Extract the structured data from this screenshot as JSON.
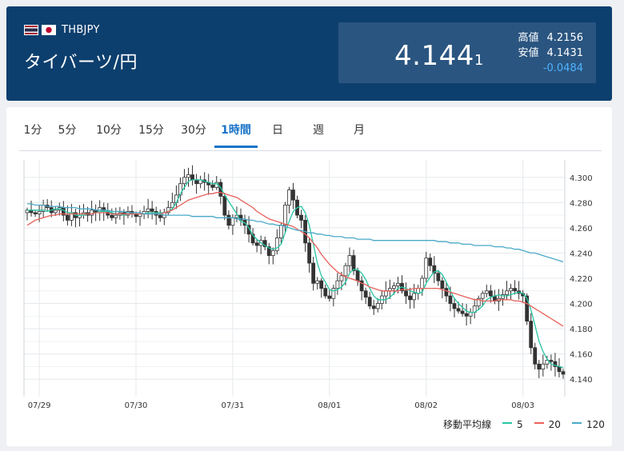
{
  "header": {
    "symbol": "THBJPY",
    "name": "タイバーツ/円",
    "price_main": "4.144",
    "price_tail": "1",
    "high_label": "高値",
    "high_value": "4.2156",
    "low_label": "安値",
    "low_value": "4.1431",
    "change": "-0.0484",
    "flag_1": "th-flag-icon",
    "flag_2": "jp-flag-icon"
  },
  "tabs": [
    {
      "label": "1分",
      "active": false
    },
    {
      "label": "5分",
      "active": false
    },
    {
      "label": "10分",
      "active": false
    },
    {
      "label": "15分",
      "active": false
    },
    {
      "label": "30分",
      "active": false
    },
    {
      "label": "1時間",
      "active": true
    },
    {
      "label": "日",
      "active": false
    },
    {
      "label": "週",
      "active": false
    },
    {
      "label": "月",
      "active": false
    }
  ],
  "legend": {
    "title": "移動平均線",
    "items": [
      {
        "label": "5",
        "color": "#26c6a4"
      },
      {
        "label": "20",
        "color": "#e8605a"
      },
      {
        "label": "120",
        "color": "#4aa9c8"
      }
    ]
  },
  "colors": {
    "up": "#ffffff",
    "down": "#333333",
    "grid": "#e5e8ec",
    "accent": "#1a73c8"
  },
  "chart_data": {
    "type": "candlestick",
    "title": "",
    "xlabel": "",
    "ylabel": "",
    "ylim": [
      4.13,
      4.31
    ],
    "yticks": [
      4.14,
      4.16,
      4.18,
      4.2,
      4.22,
      4.24,
      4.26,
      4.28,
      4.3
    ],
    "x_tick_labels": [
      {
        "label": "07/29",
        "index": 3
      },
      {
        "label": "07/30",
        "index": 27
      },
      {
        "label": "07/31",
        "index": 51
      },
      {
        "label": "08/01",
        "index": 75
      },
      {
        "label": "08/02",
        "index": 99
      },
      {
        "label": "08/03",
        "index": 123
      }
    ],
    "closes": [
      4.274,
      4.272,
      4.271,
      4.273,
      4.278,
      4.276,
      4.272,
      4.274,
      4.276,
      4.27,
      4.266,
      4.272,
      4.268,
      4.27,
      4.272,
      4.27,
      4.274,
      4.272,
      4.276,
      4.273,
      4.27,
      4.268,
      4.27,
      4.272,
      4.27,
      4.273,
      4.271,
      4.269,
      4.271,
      4.273,
      4.275,
      4.273,
      4.27,
      4.268,
      4.272,
      4.276,
      4.28,
      4.286,
      4.295,
      4.3,
      4.302,
      4.298,
      4.295,
      4.298,
      4.296,
      4.294,
      4.292,
      4.296,
      4.285,
      4.27,
      4.262,
      4.268,
      4.27,
      4.266,
      4.262,
      4.255,
      4.248,
      4.246,
      4.25,
      4.245,
      4.238,
      4.242,
      4.252,
      4.262,
      4.278,
      4.29,
      4.282,
      4.27,
      4.266,
      4.248,
      4.232,
      4.216,
      4.218,
      4.212,
      4.206,
      4.204,
      4.212,
      4.218,
      4.222,
      4.23,
      4.238,
      4.226,
      4.218,
      4.21,
      4.205,
      4.198,
      4.196,
      4.2,
      4.206,
      4.21,
      4.212,
      4.214,
      4.216,
      4.21,
      4.206,
      4.203,
      4.208,
      4.212,
      4.22,
      4.236,
      4.23,
      4.224,
      4.218,
      4.212,
      4.206,
      4.2,
      4.196,
      4.194,
      4.192,
      4.19,
      4.193,
      4.198,
      4.204,
      4.208,
      4.21,
      4.206,
      4.202,
      4.204,
      4.207,
      4.21,
      4.212,
      4.21,
      4.208,
      4.206,
      4.186,
      4.165,
      4.152,
      4.148,
      4.152,
      4.155,
      4.154,
      4.15,
      4.146,
      4.144
    ],
    "series": [
      {
        "name": "5",
        "values": [
          4.274,
          4.274,
          4.274,
          4.274,
          4.274,
          4.273,
          4.274,
          4.275,
          4.275,
          4.274,
          4.272,
          4.272,
          4.27,
          4.27,
          4.27,
          4.271,
          4.271,
          4.272,
          4.273,
          4.273,
          4.273,
          4.272,
          4.271,
          4.271,
          4.27,
          4.271,
          4.271,
          4.271,
          4.271,
          4.271,
          4.272,
          4.272,
          4.272,
          4.272,
          4.272,
          4.273,
          4.275,
          4.28,
          4.287,
          4.292,
          4.297,
          4.298,
          4.298,
          4.298,
          4.297,
          4.296,
          4.295,
          4.295,
          4.292,
          4.286,
          4.281,
          4.276,
          4.271,
          4.265,
          4.264,
          4.26,
          4.254,
          4.251,
          4.248,
          4.246,
          4.244,
          4.243,
          4.244,
          4.247,
          4.256,
          4.265,
          4.273,
          4.276,
          4.277,
          4.272,
          4.262,
          4.247,
          4.232,
          4.222,
          4.217,
          4.211,
          4.21,
          4.211,
          4.213,
          4.217,
          4.224,
          4.227,
          4.227,
          4.224,
          4.219,
          4.212,
          4.206,
          4.203,
          4.203,
          4.203,
          4.205,
          4.208,
          4.212,
          4.213,
          4.212,
          4.21,
          4.209,
          4.208,
          4.209,
          4.216,
          4.221,
          4.225,
          4.226,
          4.223,
          4.217,
          4.21,
          4.204,
          4.2,
          4.197,
          4.194,
          4.193,
          4.193,
          4.195,
          4.198,
          4.203,
          4.205,
          4.206,
          4.207,
          4.206,
          4.206,
          4.207,
          4.208,
          4.209,
          4.208,
          4.204,
          4.195,
          4.183,
          4.17,
          4.162,
          4.156,
          4.152,
          4.151,
          4.15,
          4.149
        ]
      },
      {
        "name": "20",
        "values": [
          4.262,
          4.264,
          4.266,
          4.267,
          4.268,
          4.269,
          4.27,
          4.27,
          4.271,
          4.271,
          4.271,
          4.271,
          4.271,
          4.271,
          4.271,
          4.271,
          4.271,
          4.272,
          4.272,
          4.272,
          4.272,
          4.271,
          4.271,
          4.271,
          4.271,
          4.271,
          4.271,
          4.271,
          4.271,
          4.271,
          4.271,
          4.271,
          4.271,
          4.271,
          4.272,
          4.273,
          4.274,
          4.276,
          4.278,
          4.28,
          4.282,
          4.283,
          4.284,
          4.285,
          4.286,
          4.287,
          4.287,
          4.288,
          4.288,
          4.287,
          4.286,
          4.285,
          4.284,
          4.282,
          4.28,
          4.278,
          4.276,
          4.273,
          4.271,
          4.269,
          4.267,
          4.266,
          4.265,
          4.264,
          4.263,
          4.262,
          4.261,
          4.259,
          4.257,
          4.255,
          4.252,
          4.248,
          4.244,
          4.239,
          4.235,
          4.231,
          4.228,
          4.225,
          4.223,
          4.221,
          4.22,
          4.219,
          4.218,
          4.216,
          4.215,
          4.213,
          4.212,
          4.211,
          4.21,
          4.21,
          4.21,
          4.21,
          4.21,
          4.211,
          4.211,
          4.211,
          4.212,
          4.212,
          4.212,
          4.212,
          4.212,
          4.212,
          4.212,
          4.211,
          4.21,
          4.209,
          4.208,
          4.207,
          4.206,
          4.205,
          4.204,
          4.203,
          4.203,
          4.202,
          4.202,
          4.202,
          4.202,
          4.203,
          4.203,
          4.203,
          4.203,
          4.202,
          4.202,
          4.201,
          4.2,
          4.198,
          4.196,
          4.194,
          4.192,
          4.19,
          4.188,
          4.186,
          4.184,
          4.182
        ]
      },
      {
        "name": "120",
        "values": [
          4.279,
          4.279,
          4.278,
          4.278,
          4.278,
          4.277,
          4.277,
          4.277,
          4.277,
          4.276,
          4.276,
          4.276,
          4.276,
          4.275,
          4.275,
          4.275,
          4.275,
          4.274,
          4.274,
          4.274,
          4.274,
          4.273,
          4.273,
          4.273,
          4.273,
          4.272,
          4.272,
          4.272,
          4.272,
          4.271,
          4.271,
          4.271,
          4.271,
          4.271,
          4.27,
          4.27,
          4.27,
          4.27,
          4.27,
          4.27,
          4.27,
          4.269,
          4.269,
          4.269,
          4.269,
          4.269,
          4.269,
          4.268,
          4.268,
          4.268,
          4.268,
          4.268,
          4.267,
          4.267,
          4.267,
          4.266,
          4.266,
          4.265,
          4.265,
          4.264,
          4.263,
          4.263,
          4.262,
          4.262,
          4.261,
          4.26,
          4.259,
          4.258,
          4.258,
          4.257,
          4.256,
          4.256,
          4.255,
          4.255,
          4.254,
          4.254,
          4.253,
          4.253,
          4.253,
          4.252,
          4.252,
          4.252,
          4.251,
          4.251,
          4.251,
          4.251,
          4.25,
          4.25,
          4.25,
          4.25,
          4.25,
          4.25,
          4.25,
          4.25,
          4.25,
          4.25,
          4.25,
          4.25,
          4.25,
          4.25,
          4.25,
          4.25,
          4.249,
          4.249,
          4.249,
          4.248,
          4.248,
          4.248,
          4.247,
          4.247,
          4.247,
          4.246,
          4.246,
          4.246,
          4.246,
          4.246,
          4.245,
          4.245,
          4.245,
          4.244,
          4.244,
          4.243,
          4.243,
          4.242,
          4.241,
          4.24,
          4.24,
          4.239,
          4.238,
          4.237,
          4.236,
          4.235,
          4.234,
          4.233
        ]
      }
    ]
  }
}
